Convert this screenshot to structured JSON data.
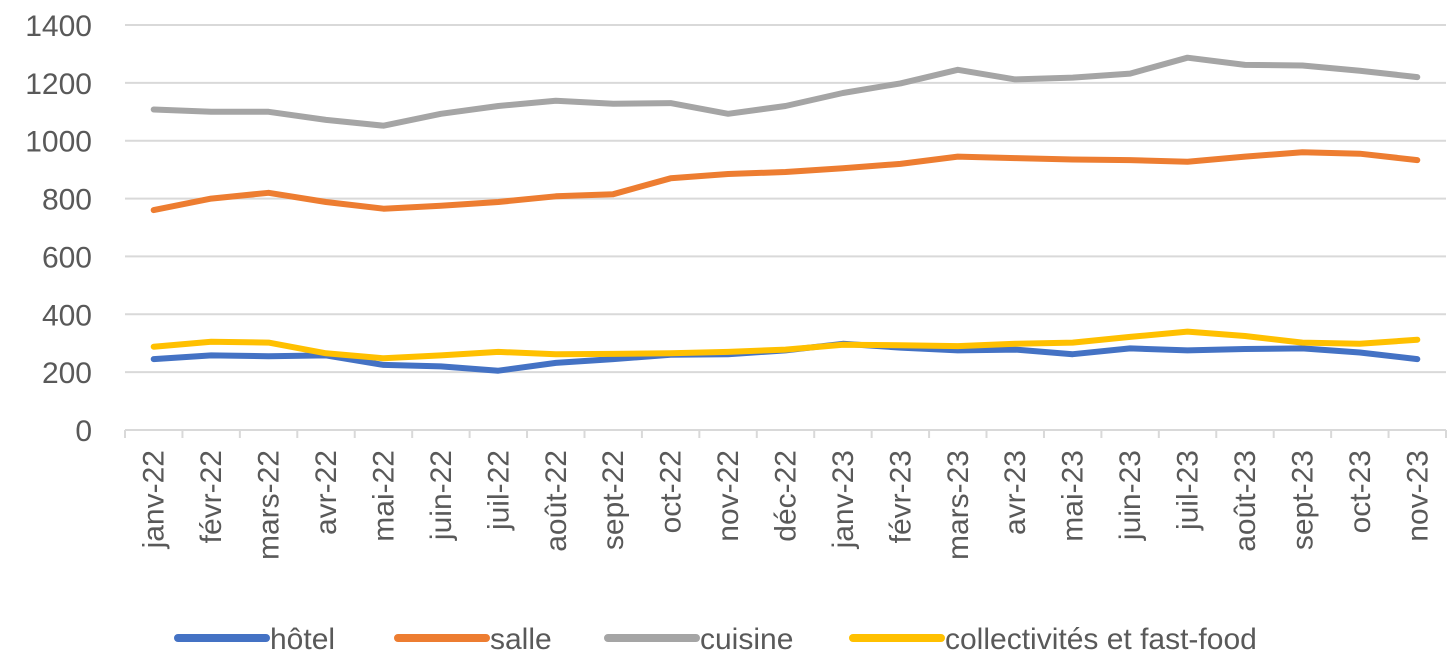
{
  "chart_data": {
    "type": "line",
    "title": "",
    "xlabel": "",
    "ylabel": "",
    "ylim": [
      0,
      1400
    ],
    "yticks": [
      0,
      200,
      400,
      600,
      800,
      1000,
      1200,
      1400
    ],
    "grid": "horizontal",
    "legend_position": "bottom",
    "categories": [
      "janv-22",
      "févr-22",
      "mars-22",
      "avr-22",
      "mai-22",
      "juin-22",
      "juil-22",
      "août-22",
      "sept-22",
      "oct-22",
      "nov-22",
      "déc-22",
      "janv-23",
      "févr-23",
      "mars-23",
      "avr-23",
      "mai-23",
      "juin-23",
      "juil-23",
      "août-23",
      "sept-23",
      "oct-23",
      "nov-23"
    ],
    "series": [
      {
        "name": "hôtel",
        "color": "#4472C4",
        "values": [
          245,
          258,
          255,
          258,
          225,
          220,
          205,
          232,
          245,
          260,
          262,
          275,
          298,
          285,
          275,
          278,
          262,
          282,
          275,
          280,
          282,
          268,
          245
        ]
      },
      {
        "name": "salle",
        "color": "#ED7D31",
        "values": [
          760,
          800,
          820,
          788,
          765,
          775,
          788,
          808,
          815,
          870,
          885,
          892,
          905,
          920,
          945,
          940,
          935,
          933,
          927,
          945,
          960,
          955,
          933
        ]
      },
      {
        "name": "cuisine",
        "color": "#A5A5A5",
        "values": [
          1108,
          1100,
          1100,
          1072,
          1052,
          1093,
          1120,
          1138,
          1128,
          1130,
          1093,
          1120,
          1165,
          1198,
          1245,
          1212,
          1218,
          1232,
          1287,
          1262,
          1260,
          1242,
          1220
        ]
      },
      {
        "name": "collectivités et fast-food",
        "color": "#FFC000",
        "values": [
          288,
          305,
          302,
          265,
          248,
          258,
          270,
          262,
          263,
          265,
          270,
          278,
          295,
          293,
          290,
          298,
          302,
          322,
          340,
          325,
          302,
          298,
          312
        ]
      }
    ]
  }
}
